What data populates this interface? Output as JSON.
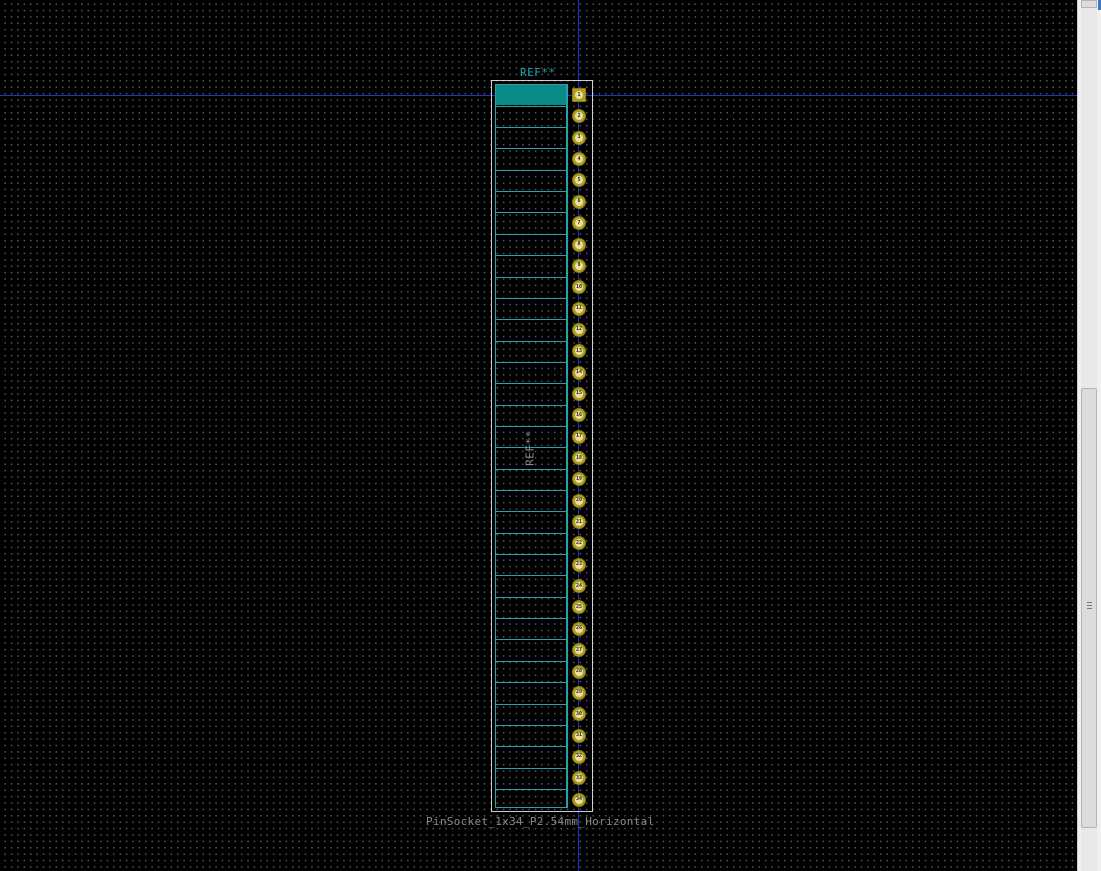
{
  "footprint": {
    "reference_top": "REF**",
    "reference_fab": "REF**",
    "value": "PinSocket_1x34_P2.54mm_Horizontal",
    "pin_count": 34,
    "pins": [
      "1",
      "2",
      "3",
      "4",
      "5",
      "6",
      "7",
      "8",
      "9",
      "10",
      "11",
      "12",
      "13",
      "14",
      "15",
      "16",
      "17",
      "18",
      "19",
      "20",
      "21",
      "22",
      "23",
      "24",
      "25",
      "26",
      "27",
      "28",
      "29",
      "30",
      "31",
      "32",
      "33",
      "34"
    ]
  },
  "colors": {
    "background": "#000000",
    "grid_dot": "#5a5a5a",
    "crosshair": "#2233cc",
    "fab_outline": "#2aa0a8",
    "pin1_marker": "#0a8a86",
    "pad": "#b0a018",
    "courtyard": "#cfcfcf",
    "text_gray": "#8a8a8a"
  },
  "scrollbar": {
    "vertical_position_fraction": 0.45
  }
}
